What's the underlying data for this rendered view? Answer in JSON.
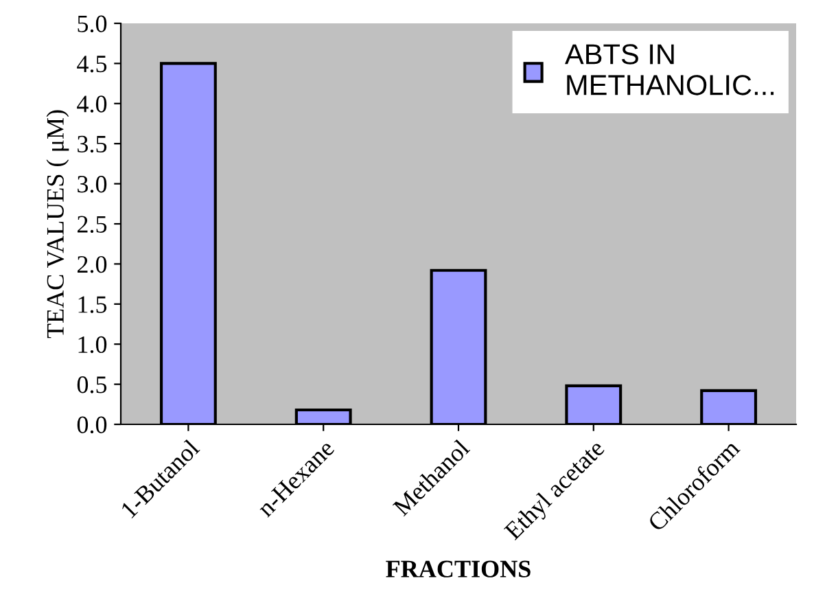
{
  "chart_data": {
    "type": "bar",
    "xlabel": "FRACTIONS",
    "ylabel": "TEAC VALUES ( μM)",
    "categories": [
      "1-Butanol",
      "n-Hexane",
      "Methanol",
      "Ethyl acetate",
      "Chloroform"
    ],
    "series": [
      {
        "name": "ABTS IN\nMETHANOLIC...",
        "color": "#9999ff",
        "values": [
          4.5,
          0.18,
          1.92,
          0.48,
          0.42
        ]
      }
    ],
    "ylim": [
      0,
      5
    ],
    "yticks": [
      {
        "value": 0,
        "label": "0.0"
      },
      {
        "value": 0.5,
        "label": "0.5"
      },
      {
        "value": 1,
        "label": "1.0"
      },
      {
        "value": 1.5,
        "label": "1.5"
      },
      {
        "value": 2,
        "label": "2.0"
      },
      {
        "value": 2.5,
        "label": "2.5"
      },
      {
        "value": 3,
        "label": "3.0"
      },
      {
        "value": 3.5,
        "label": "3.5"
      },
      {
        "value": 4,
        "label": "4.0"
      },
      {
        "value": 4.5,
        "label": "4.5"
      },
      {
        "value": 5,
        "label": "5.0"
      }
    ],
    "grid": false,
    "legend": "top right"
  }
}
